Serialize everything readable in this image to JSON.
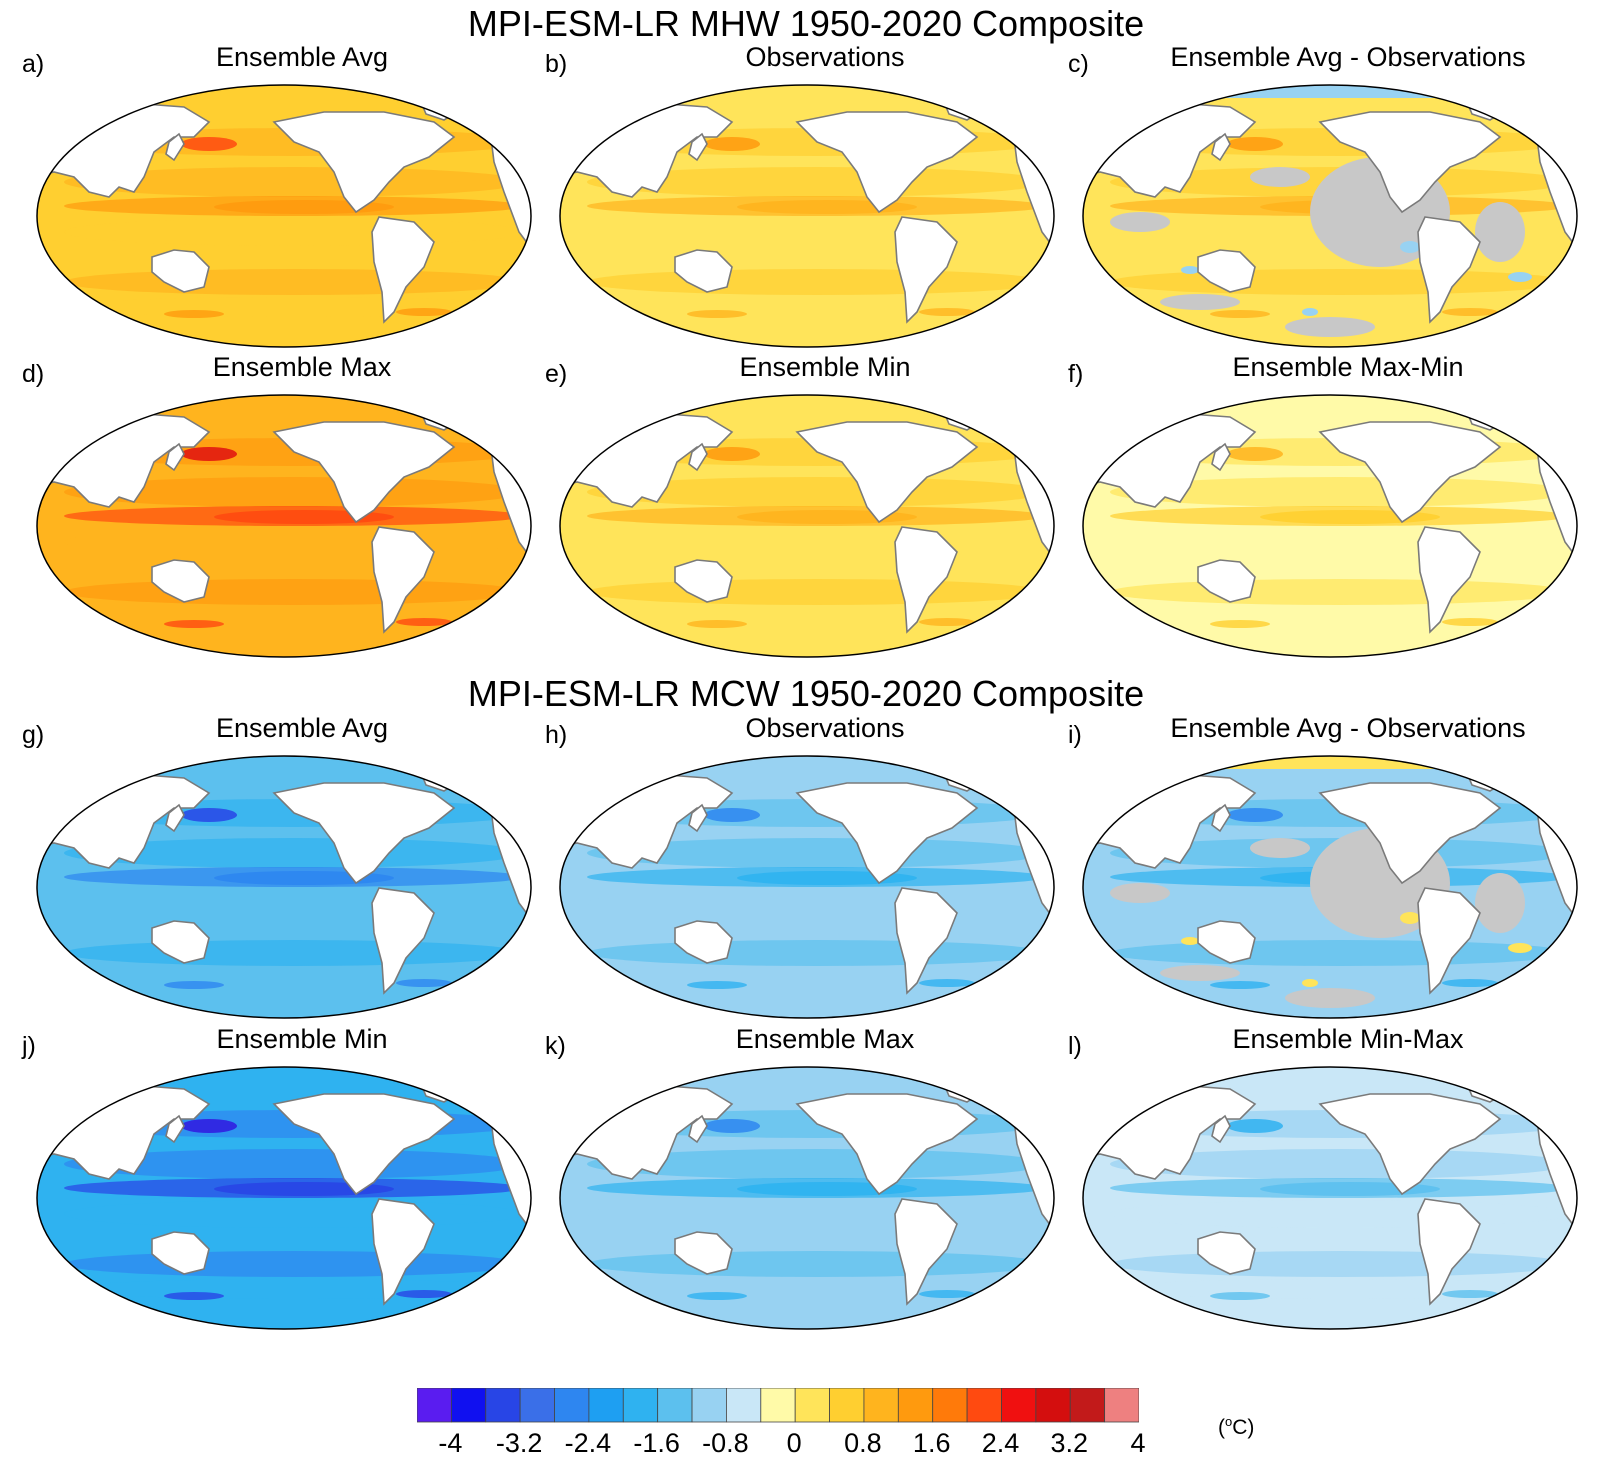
{
  "sections": [
    {
      "title": "MPI-ESM-LR MHW 1950-2020 Composite",
      "kind": "warm"
    },
    {
      "title": "MPI-ESM-LR MCW 1950-2020 Composite",
      "kind": "cold"
    }
  ],
  "panels": [
    {
      "letter": "a)",
      "title": "Ensemble Avg",
      "kind": "warm",
      "intensity": 2,
      "grey": false
    },
    {
      "letter": "b)",
      "title": "Observations",
      "kind": "warm",
      "intensity": 1,
      "grey": false
    },
    {
      "letter": "c)",
      "title": "Ensemble Avg - Observations",
      "kind": "diff-warm",
      "intensity": 1,
      "grey": true
    },
    {
      "letter": "d)",
      "title": "Ensemble Max",
      "kind": "warm",
      "intensity": 3,
      "grey": false
    },
    {
      "letter": "e)",
      "title": "Ensemble Min",
      "kind": "warm",
      "intensity": 1,
      "grey": false
    },
    {
      "letter": "f)",
      "title": "Ensemble Max-Min",
      "kind": "warm",
      "intensity": 0,
      "grey": false
    },
    {
      "letter": "g)",
      "title": "Ensemble Avg",
      "kind": "cold",
      "intensity": 2,
      "grey": false
    },
    {
      "letter": "h)",
      "title": "Observations",
      "kind": "cold",
      "intensity": 1,
      "grey": false
    },
    {
      "letter": "i)",
      "title": "Ensemble Avg - Observations",
      "kind": "diff-cold",
      "intensity": 1,
      "grey": true
    },
    {
      "letter": "j)",
      "title": "Ensemble Min",
      "kind": "cold",
      "intensity": 3,
      "grey": false
    },
    {
      "letter": "k)",
      "title": "Ensemble Max",
      "kind": "cold",
      "intensity": 1,
      "grey": false
    },
    {
      "letter": "l)",
      "title": "Ensemble Min-Max",
      "kind": "cold",
      "intensity": 0,
      "grey": false
    }
  ],
  "colorbar": {
    "colors": [
      "#5a1cf0",
      "#1010f0",
      "#2845e6",
      "#3a6fe8",
      "#2e86f0",
      "#1e9ff2",
      "#2fb2f0",
      "#5cc0ee",
      "#98d2f2",
      "#c9e7f7",
      "#fffaa8",
      "#ffe45a",
      "#ffcf30",
      "#ffb41e",
      "#ff9a0e",
      "#ff7a0a",
      "#ff4a10",
      "#f01010",
      "#d40e0e",
      "#c21a1a",
      "#ee8080"
    ],
    "ticks": [
      "-4",
      "-3.2",
      "-2.4",
      "-1.6",
      "-0.8",
      "0",
      "0.8",
      "1.6",
      "2.4",
      "3.2",
      "4"
    ],
    "unit": "(°C)",
    "unit_base": "(",
    "unit_sup": "o",
    "unit_rest": "C)"
  },
  "palettes": {
    "warm": [
      "#fffaa8",
      "#ffe45a",
      "#ffcf30",
      "#ffb41e",
      "#ff9a0e",
      "#ff4a10",
      "#e01010"
    ],
    "cold": [
      "#c9e7f7",
      "#98d2f2",
      "#5cc0ee",
      "#2fb2f0",
      "#2e86f0",
      "#2845e6",
      "#3018e0"
    ],
    "grey": "#c8c8c8"
  }
}
